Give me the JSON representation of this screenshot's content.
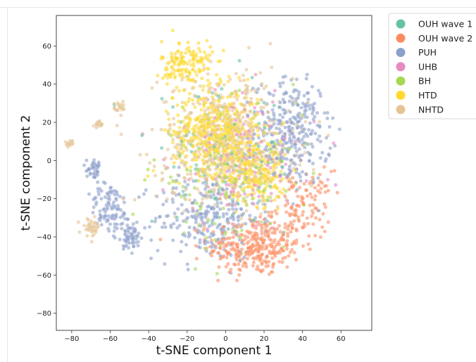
{
  "chart_data": {
    "type": "scatter",
    "xlabel": "t-SNE component 1",
    "ylabel": "t-SNE component 2",
    "xlim": [
      -88,
      76
    ],
    "ylim": [
      -89,
      76
    ],
    "xticks": [
      -80,
      -60,
      -40,
      -20,
      0,
      20,
      40,
      60
    ],
    "yticks": [
      -80,
      -60,
      -40,
      -20,
      0,
      20,
      40,
      60
    ],
    "grid": false,
    "legend_placement": "outside-top-right",
    "series": [
      {
        "name": "OUH wave 1",
        "color": "#66c2a5"
      },
      {
        "name": "OUH wave 2",
        "color": "#fc8d62"
      },
      {
        "name": "PUH",
        "color": "#8da0cb"
      },
      {
        "name": "UHB",
        "color": "#e78ac3"
      },
      {
        "name": "BH",
        "color": "#a6d854"
      },
      {
        "name": "HTD",
        "color": "#ffd92f"
      },
      {
        "name": "NHTD",
        "color": "#e5c494"
      }
    ],
    "clusters": [
      {
        "series": "OUH wave 2",
        "center": [
          15,
          -45
        ],
        "spread": [
          22,
          14
        ],
        "count": 320
      },
      {
        "series": "OUH wave 2",
        "center": [
          40,
          -25
        ],
        "spread": [
          14,
          18
        ],
        "count": 120
      },
      {
        "series": "PUH",
        "center": [
          35,
          15
        ],
        "spread": [
          18,
          25
        ],
        "count": 300
      },
      {
        "series": "PUH",
        "center": [
          -10,
          -30
        ],
        "spread": [
          25,
          20
        ],
        "count": 250
      },
      {
        "series": "PUH",
        "center": [
          -60,
          -25
        ],
        "spread": [
          10,
          12
        ],
        "count": 100
      },
      {
        "series": "HTD",
        "center": [
          -5,
          15
        ],
        "spread": [
          20,
          20
        ],
        "count": 480
      },
      {
        "series": "HTD",
        "center": [
          15,
          -5
        ],
        "spread": [
          15,
          15
        ],
        "count": 250
      },
      {
        "series": "HTD",
        "center": [
          -20,
          50
        ],
        "spread": [
          12,
          12
        ],
        "count": 160
      },
      {
        "series": "NHTD",
        "center": [
          0,
          10
        ],
        "spread": [
          32,
          32
        ],
        "count": 600
      },
      {
        "series": "UHB",
        "center": [
          10,
          0
        ],
        "spread": [
          35,
          32
        ],
        "count": 140
      },
      {
        "series": "BH",
        "center": [
          0,
          -10
        ],
        "spread": [
          35,
          32
        ],
        "count": 140
      },
      {
        "series": "OUH wave 1",
        "center": [
          0,
          0
        ],
        "spread": [
          35,
          32
        ],
        "count": 120
      },
      {
        "series": "NHTD",
        "center": [
          -81,
          9
        ],
        "spread": [
          1.5,
          1.5
        ],
        "count": 18
      },
      {
        "series": "NHTD",
        "center": [
          -66,
          19
        ],
        "spread": [
          2,
          1.5
        ],
        "count": 20
      },
      {
        "series": "NHTD",
        "center": [
          -55,
          28
        ],
        "spread": [
          3,
          3
        ],
        "count": 22
      },
      {
        "series": "PUH",
        "center": [
          -68,
          -5
        ],
        "spread": [
          4,
          4
        ],
        "count": 40
      },
      {
        "series": "NHTD",
        "center": [
          -70,
          -35
        ],
        "spread": [
          4,
          4
        ],
        "count": 40
      },
      {
        "series": "PUH",
        "center": [
          -50,
          -40
        ],
        "spread": [
          6,
          6
        ],
        "count": 60
      }
    ]
  }
}
